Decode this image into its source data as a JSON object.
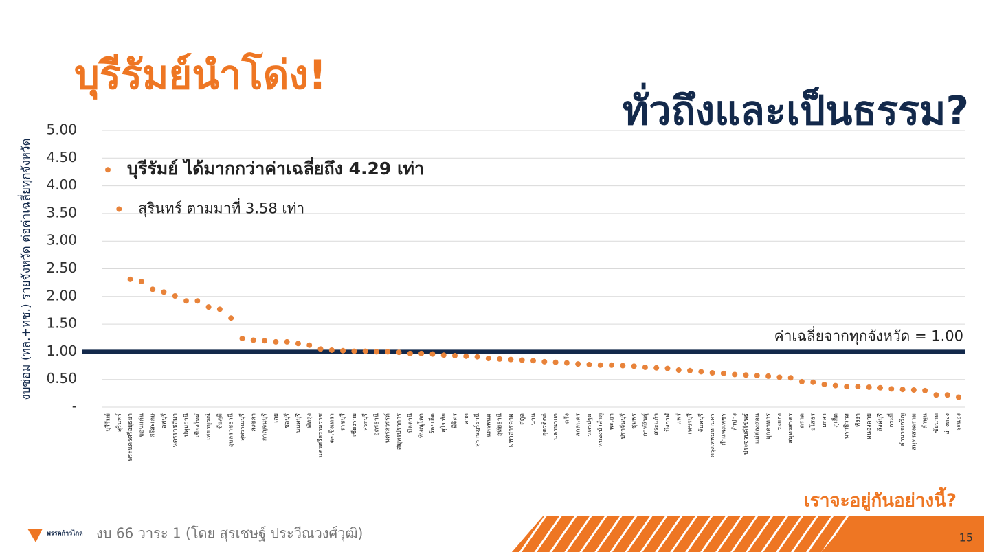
{
  "slide": {
    "title": "บุรีรัมย์นำโด่ง!",
    "subtitle": "ทั่วถึงและเป็นธรรม?",
    "question": "เราจะอยู่กันอย่างนี้?",
    "footer": "งบ 66 วาระ 1 (โดย สุรเชษฐ์ ประวีณวงศ์วุฒิ)",
    "logo": "พรรคก้าวไกล",
    "page": "15"
  },
  "chart_data": {
    "type": "dot",
    "y_label": "งบซ่อม (ทล.+ทช.) รายจังหวัด ต่อค่าเฉลี่ยทุกจังหวัด",
    "categories": [
      "บุรีรัมย์",
      "สุรินทร์",
      "พระนครศรีอยุธยา",
      "ขอนแก่น",
      "ศรีสะเกษ",
      "ลพบุรี",
      "นครราชสีมา",
      "ปทุมธานี",
      "เชียงใหม่",
      "เพชรบูรณ์",
      "ชัยภูมิ",
      "อุบลราชธานี",
      "สุพรรณบุรี",
      "สงขลา",
      "กาญจนบุรี",
      "เลย",
      "ชลบุรี",
      "นนทบุรี",
      "พัทลุง",
      "นครศรีธรรมราช",
      "ฉะเชิงเทรา",
      "ราชบุรี",
      "เชียงราย",
      "สระบุรี",
      "อุดรธานี",
      "นครสวรรค์",
      "สมุทรปราการ",
      "ปัตตานี",
      "พิษณุโลก",
      "ร้อยเอ็ด",
      "สุโขทัย",
      "พิจิตร",
      "ตาก",
      "สุราษฎร์ธานี",
      "นครพนม",
      "อุทัยธานี",
      "มหาสารคาม",
      "สตูล",
      "น่าน",
      "อุตรดิตถ์",
      "นครนายก",
      "ตรัง",
      "สกลนคร",
      "นครปฐม",
      "หนองบัวลำภู",
      "พะเยา",
      "ปราจีนบุรี",
      "ชุมพร",
      "กาฬสินธุ์",
      "สระแก้ว",
      "บึงกาฬ",
      "แพร่",
      "เพชรบุรี",
      "จันทบุรี",
      "กรุงเทพมหานคร",
      "กำแพงเพชร",
      "ลำปาง",
      "ประจวบคีรีขันธ์",
      "แม่ฮ่องสอน",
      "มุกดาหาร",
      "ระยอง",
      "สมุทรสาคร",
      "ตราด",
      "ยโสธร",
      "ยะลา",
      "ภูเก็ต",
      "นราธิวาส",
      "พังงา",
      "หนองคาย",
      "สิงห์บุรี",
      "กระบี่",
      "อำนาจเจริญ",
      "สมุทรสงคราม",
      "ลำพูน",
      "ชัยนาท",
      "อ่างทอง",
      "ระนอง"
    ],
    "values": [
      4.29,
      3.58,
      2.31,
      2.27,
      2.13,
      2.08,
      2.01,
      1.92,
      1.92,
      1.81,
      1.77,
      1.61,
      1.24,
      1.21,
      1.2,
      1.18,
      1.18,
      1.15,
      1.12,
      1.05,
      1.03,
      1.02,
      1.01,
      1.01,
      1.0,
      1.0,
      0.99,
      0.97,
      0.97,
      0.96,
      0.94,
      0.93,
      0.92,
      0.91,
      0.88,
      0.87,
      0.86,
      0.85,
      0.84,
      0.82,
      0.81,
      0.8,
      0.78,
      0.77,
      0.76,
      0.76,
      0.75,
      0.74,
      0.72,
      0.71,
      0.7,
      0.67,
      0.66,
      0.64,
      0.62,
      0.61,
      0.59,
      0.58,
      0.57,
      0.56,
      0.54,
      0.53,
      0.46,
      0.45,
      0.41,
      0.39,
      0.37,
      0.37,
      0.36,
      0.35,
      0.33,
      0.32,
      0.31,
      0.3,
      0.22,
      0.22,
      0.18
    ],
    "color": "#e8833a",
    "ylim": [
      0,
      5
    ],
    "yticks": [
      {
        "value": 0,
        "label": "-"
      },
      {
        "value": 0.5,
        "label": "0.50"
      },
      {
        "value": 1,
        "label": "1.00"
      },
      {
        "value": 1.5,
        "label": "1.50"
      },
      {
        "value": 2,
        "label": "2.00"
      },
      {
        "value": 2.5,
        "label": "2.50"
      },
      {
        "value": 3,
        "label": "3.00"
      },
      {
        "value": 3.5,
        "label": "3.50"
      },
      {
        "value": 4,
        "label": "4.00"
      },
      {
        "value": 4.5,
        "label": "4.50"
      },
      {
        "value": 5,
        "label": "5.00"
      }
    ],
    "grid": true,
    "reference_line": {
      "value": 1,
      "label": "ค่าเฉลี่ยจากทุกจังหวัด = 1.00",
      "color": "#13294b"
    },
    "annotations": [
      "บุรีรัมย์ ได้มากกว่าค่าเฉลี่ยถึง 4.29 เท่า",
      "สุรินทร์ ตามมาที่ 3.58 เท่า"
    ]
  }
}
